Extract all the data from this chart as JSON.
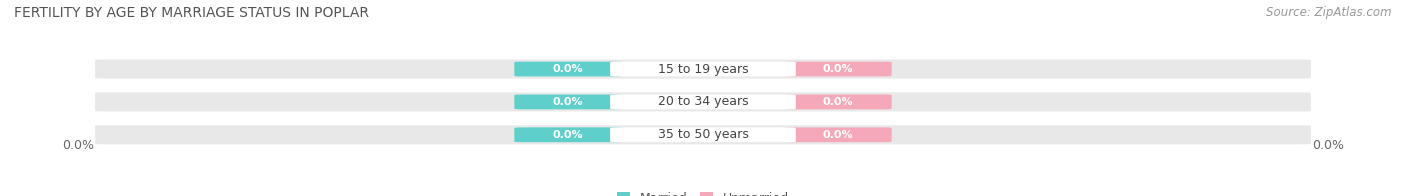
{
  "title": "FERTILITY BY AGE BY MARRIAGE STATUS IN POPLAR",
  "source": "Source: ZipAtlas.com",
  "categories": [
    "15 to 19 years",
    "20 to 34 years",
    "35 to 50 years"
  ],
  "married_values": [
    0.0,
    0.0,
    0.0
  ],
  "unmarried_values": [
    0.0,
    0.0,
    0.0
  ],
  "married_color": "#5ECFCA",
  "unmarried_color": "#F4A8B8",
  "bar_bg_color": "#E8E8E8",
  "center_pill_color": "#FFFFFF",
  "left_label": "0.0%",
  "right_label": "0.0%",
  "title_fontsize": 10,
  "source_fontsize": 8.5,
  "cat_label_fontsize": 9,
  "val_label_fontsize": 8,
  "legend_fontsize": 9,
  "fig_width": 14.06,
  "fig_height": 1.96,
  "background_color": "#ffffff"
}
